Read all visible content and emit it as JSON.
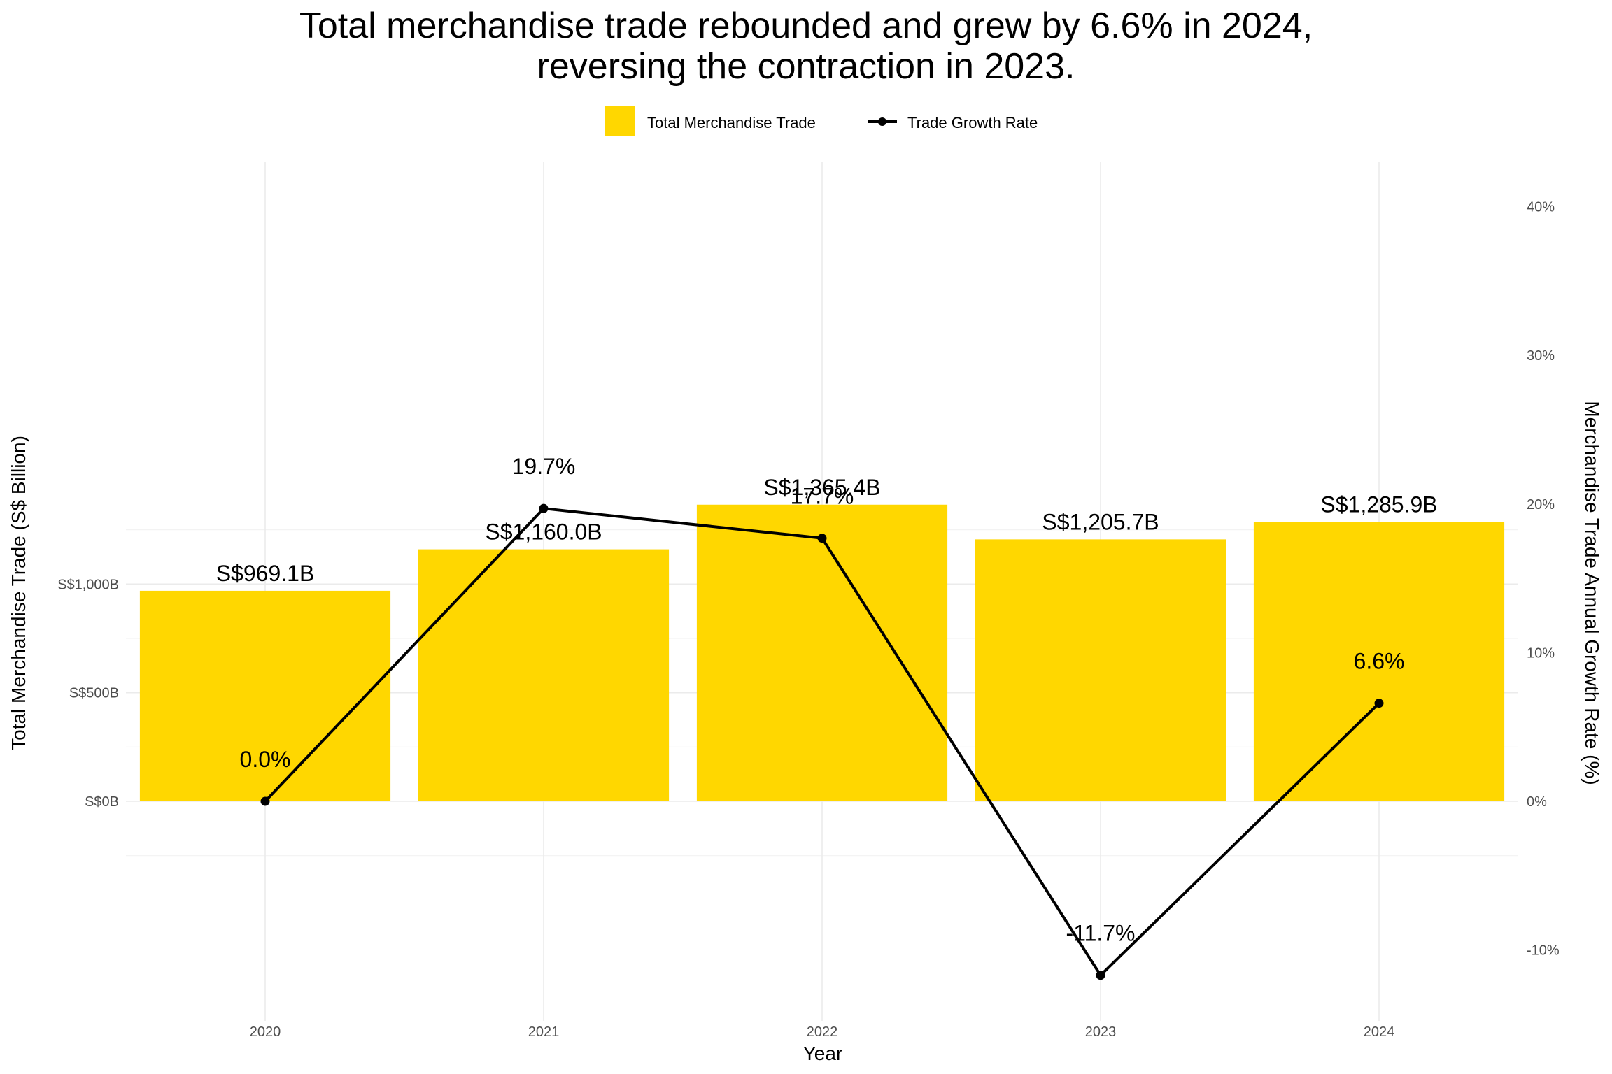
{
  "chart_data": {
    "type": "bar",
    "title_lines": [
      "Total merchandise trade rebounded and grew by 6.6% in 2024,",
      "reversing the contraction in 2023."
    ],
    "xlabel": "Year",
    "ylabel": "Total Merchandise Trade (S$ Billion)",
    "ylabel_right": "Merchandise Trade Annual Growth Rate (%)",
    "categories": [
      "2020",
      "2021",
      "2022",
      "2023",
      "2024"
    ],
    "series": [
      {
        "name": "Total Merchandise Trade",
        "kind": "bar",
        "color": "#FFD700",
        "values": [
          969.1,
          1160.0,
          1365.4,
          1205.7,
          1285.9
        ],
        "labels": [
          "S$969.1B",
          "S$1,160.0B",
          "S$1,365.4B",
          "S$1,205.7B",
          "S$1,285.9B"
        ]
      },
      {
        "name": "Trade Growth Rate",
        "kind": "line",
        "axis": "right",
        "color": "#000000",
        "values": [
          0.0,
          19.7,
          17.7,
          -11.7,
          6.6
        ],
        "labels": [
          "0.0%",
          "19.7%",
          "17.7%",
          "-11.7%",
          "6.6%"
        ]
      }
    ],
    "y_left": {
      "ticks": [
        0,
        500,
        1000
      ],
      "tick_labels": [
        "S$0B",
        "S$500B",
        "S$1,000B"
      ],
      "range": [
        -354,
        1558
      ]
    },
    "y_right": {
      "ticks": [
        -10,
        0,
        10,
        20,
        30,
        40
      ],
      "tick_labels": [
        "-10%",
        "0%",
        "10%",
        "20%",
        "30%",
        "40%"
      ],
      "range": [
        -14.7,
        48.0
      ]
    },
    "grid": true,
    "legend_position": "top"
  }
}
